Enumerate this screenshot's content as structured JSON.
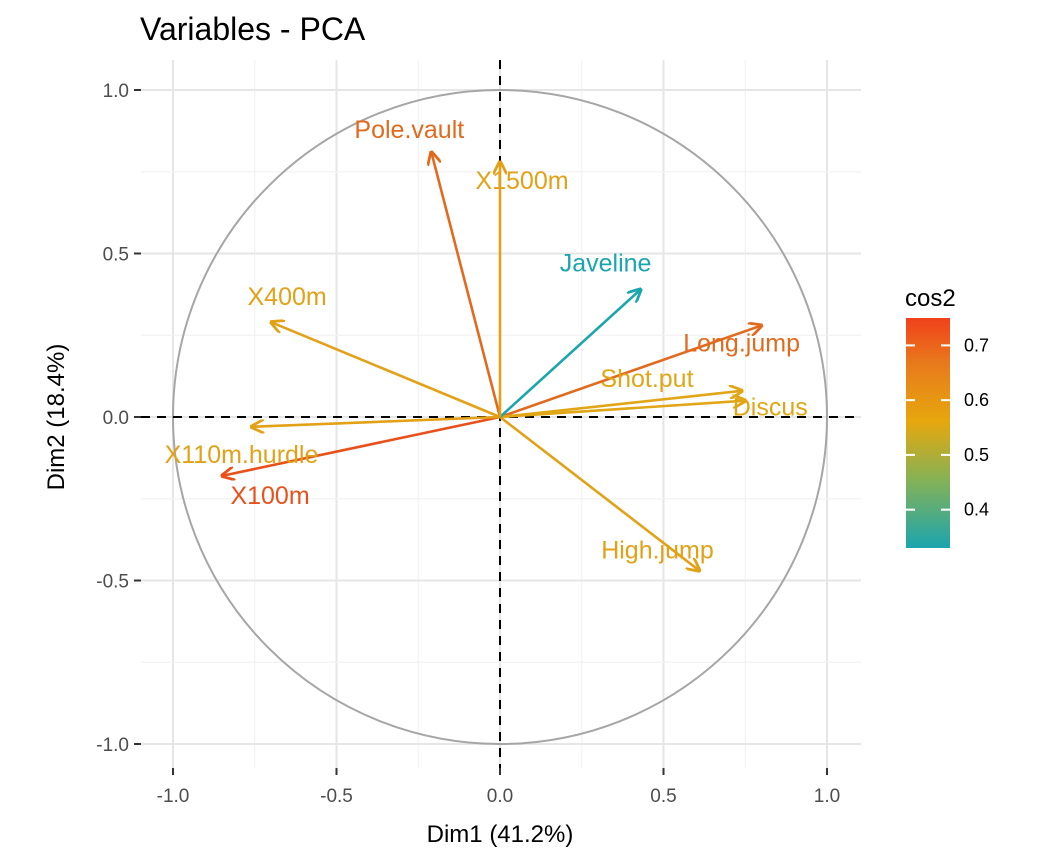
{
  "colors": {
    "background": "#ffffff",
    "grid_major": "#e6e6e6",
    "grid_minor": "#f2f2f2",
    "circle": "#a6a6a6",
    "zero_line": "#000000",
    "gradient": [
      "#1BA5AE",
      "#87B255",
      "#E6A70D",
      "#E87B1C",
      "#F1411B"
    ]
  },
  "chart_data": {
    "type": "scatter",
    "subtype": "pca-variable-correlation-circle",
    "title": "Variables - PCA",
    "xlabel": "Dim1 (41.2%)",
    "ylabel": "Dim2 (18.4%)",
    "xlim": [
      -1.0,
      1.0
    ],
    "ylim": [
      -1.0,
      1.0
    ],
    "xticks": [
      -1.0,
      -0.5,
      0.0,
      0.5,
      1.0
    ],
    "yticks": [
      -1.0,
      -0.5,
      0.0,
      0.5,
      1.0
    ],
    "xtick_labels": [
      "-1.0",
      "-0.5",
      "0.0",
      "0.5",
      "1.0"
    ],
    "ytick_labels": [
      "1.0",
      "0.5",
      "0.0",
      "-0.5",
      "-1.0"
    ],
    "grid": true,
    "unit_circle": true,
    "legend": {
      "title": "cos2",
      "position": "right",
      "range": [
        0.33,
        0.75
      ],
      "ticks": [
        0.7,
        0.6,
        0.5,
        0.4
      ],
      "tick_labels": [
        "0.7",
        "0.6",
        "0.5",
        "0.4"
      ]
    },
    "variables": [
      {
        "name": "X100m",
        "x": -0.85,
        "y": -0.18,
        "cos2": 0.75,
        "color": "#E8511C"
      },
      {
        "name": "Long.jump",
        "x": 0.8,
        "y": 0.28,
        "cos2": 0.7,
        "color": "#E26A1E"
      },
      {
        "name": "Shot.put",
        "x": 0.74,
        "y": 0.08,
        "cos2": 0.56,
        "color": "#E0A616"
      },
      {
        "name": "High.jump",
        "x": 0.61,
        "y": -0.47,
        "cos2": 0.58,
        "color": "#E2A116"
      },
      {
        "name": "X400m",
        "x": -0.7,
        "y": 0.29,
        "cos2": 0.58,
        "color": "#E2A116"
      },
      {
        "name": "X110m.hurdle",
        "x": -0.76,
        "y": -0.03,
        "cos2": 0.58,
        "color": "#E2A116"
      },
      {
        "name": "Discus",
        "x": 0.75,
        "y": 0.05,
        "cos2": 0.56,
        "color": "#E0A616"
      },
      {
        "name": "Pole.vault",
        "x": -0.21,
        "y": 0.81,
        "cos2": 0.68,
        "color": "#E26A1E"
      },
      {
        "name": "Javeline",
        "x": 0.43,
        "y": 0.39,
        "cos2": 0.33,
        "color": "#1BA5AE"
      },
      {
        "name": "X1500m",
        "x": 0.0,
        "y": 0.78,
        "cos2": 0.58,
        "color": "#E2A116"
      }
    ]
  }
}
